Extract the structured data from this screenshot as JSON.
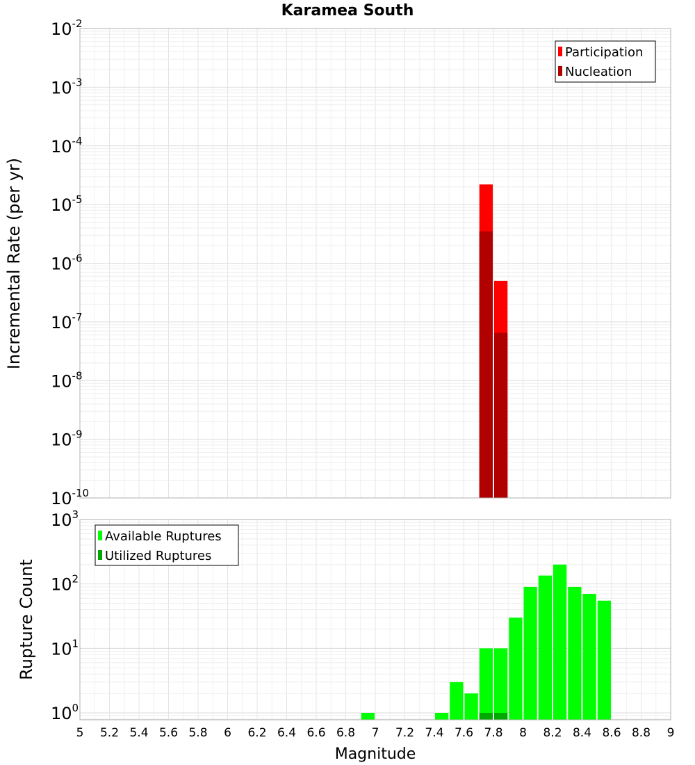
{
  "chart_data": [
    {
      "type": "bar",
      "title": "Karamea South",
      "xlabel": "",
      "ylabel": "Incremental Rate (per yr)",
      "yscale": "log",
      "xlim": [
        5,
        9
      ],
      "ylim": [
        1e-10,
        0.01
      ],
      "ytick_labels": [
        {
          "base": "10",
          "exp": "-2"
        },
        {
          "base": "10",
          "exp": "-3"
        },
        {
          "base": "10",
          "exp": "-4"
        },
        {
          "base": "10",
          "exp": "-5"
        },
        {
          "base": "10",
          "exp": "-6"
        },
        {
          "base": "10",
          "exp": "-7"
        },
        {
          "base": "10",
          "exp": "-8"
        },
        {
          "base": "10",
          "exp": "-9"
        },
        {
          "base": "10",
          "exp": "-10"
        }
      ],
      "grid": true,
      "legend_position": "top-right",
      "bar_width": 0.1,
      "series": [
        {
          "name": "Participation",
          "color": "#ff0000",
          "x": [
            7.75,
            7.85
          ],
          "values": [
            2.2e-05,
            5e-07
          ]
        },
        {
          "name": "Nucleation",
          "color": "#b00000",
          "x": [
            7.75,
            7.85
          ],
          "values": [
            3.5e-06,
            6.5e-08
          ]
        }
      ]
    },
    {
      "type": "bar",
      "title": "",
      "xlabel": "Magnitude",
      "ylabel": "Rupture Count",
      "yscale": "log",
      "xlim": [
        5,
        9
      ],
      "ylim": [
        0.78,
        1000
      ],
      "xticks": [
        "5",
        "5.2",
        "5.4",
        "5.6",
        "5.8",
        "6",
        "6.2",
        "6.4",
        "6.6",
        "6.8",
        "7",
        "7.2",
        "7.4",
        "7.6",
        "7.8",
        "8",
        "8.2",
        "8.4",
        "8.6",
        "8.8",
        "9"
      ],
      "ytick_labels": [
        {
          "base": "10",
          "exp": "3"
        },
        {
          "base": "10",
          "exp": "2"
        },
        {
          "base": "10",
          "exp": "1"
        },
        {
          "base": "10",
          "exp": "0"
        }
      ],
      "grid": true,
      "legend_position": "top-left",
      "bar_width": 0.1,
      "series": [
        {
          "name": "Available Ruptures",
          "color": "#00ff00",
          "x": [
            6.95,
            7.45,
            7.55,
            7.65,
            7.75,
            7.85,
            7.95,
            8.05,
            8.15,
            8.25,
            8.35,
            8.45,
            8.55
          ],
          "values": [
            1,
            1,
            3,
            2,
            10,
            10,
            30,
            90,
            135,
            200,
            90,
            70,
            55
          ]
        },
        {
          "name": "Utilized Ruptures",
          "color": "#00aa00",
          "x": [
            7.75,
            7.85
          ],
          "values": [
            1,
            1
          ]
        }
      ]
    }
  ]
}
